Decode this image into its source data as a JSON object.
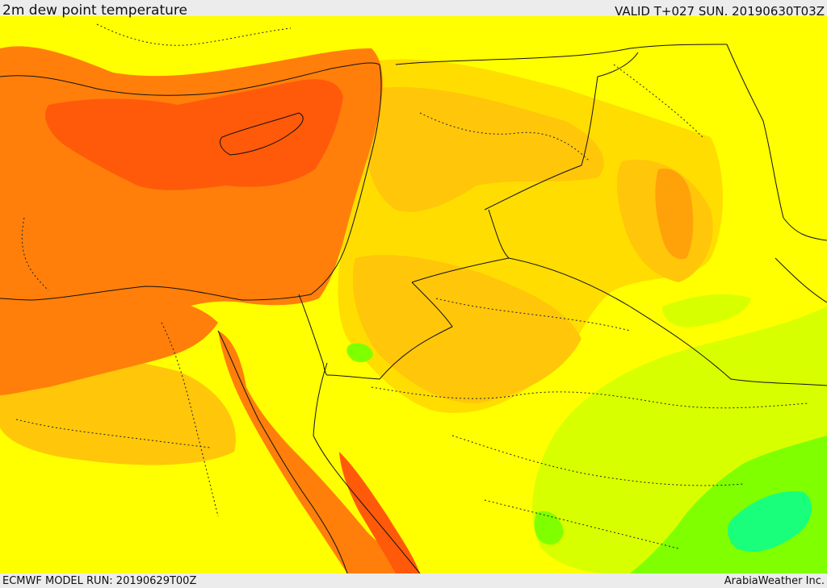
{
  "header": {
    "title": "2m dew point temperature",
    "valid": "VALID T+027 SUN. 20190630T03Z"
  },
  "footer": {
    "model_run": "ECMWF MODEL RUN: 20190629T00Z",
    "credit": "ArabiaWeather Inc."
  },
  "map": {
    "colors": {
      "deep_orange": "#ff5a0a",
      "orange": "#ff7f0a",
      "light_orange": "#ffa20a",
      "amber": "#ffc60a",
      "yellow_orange": "#ffdd00",
      "yellow": "#ffff00",
      "yellow_green": "#d8ff00",
      "green": "#80ff00",
      "aqua_green": "#19ff7c",
      "border": "#111111"
    }
  }
}
